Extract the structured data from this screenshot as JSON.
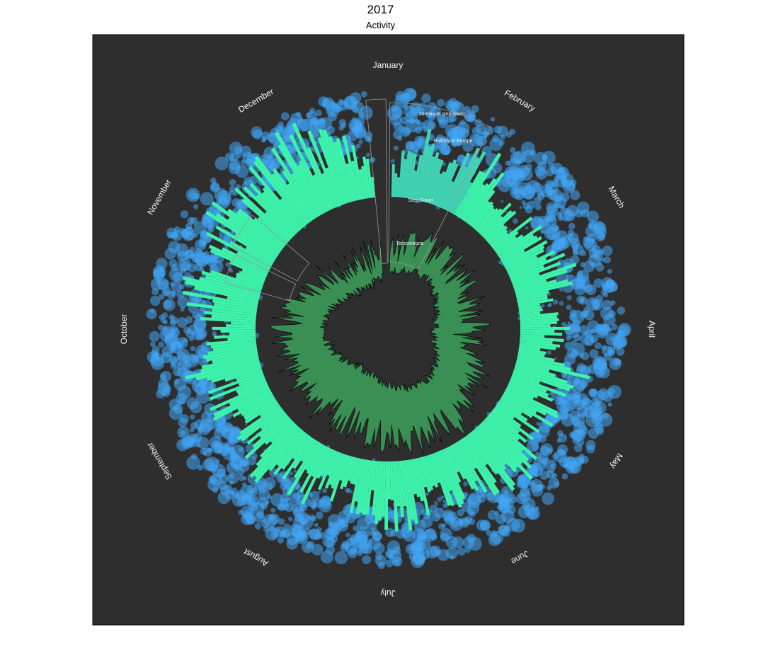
{
  "chart_data": {
    "type": "area",
    "title": "2017",
    "subtitle": "Activity",
    "layout": "polar",
    "theme": {
      "panel_background": "#2e2e2e",
      "panel_border": "#000000",
      "text_color": "#f2f2f2",
      "step_count_color": "#3df2aa",
      "step_count_highlight_color": "#40d4b4",
      "fifteen_min_color": "#42a5f5",
      "temperature_fill": "#3a8f55",
      "temperature_stroke": "#000000",
      "annotation_stroke": "#9a9a9a"
    },
    "months": [
      "January",
      "February",
      "March",
      "April",
      "May",
      "June",
      "July",
      "August",
      "September",
      "October",
      "November",
      "December"
    ],
    "series": [
      {
        "name": "Temperature",
        "type": "area",
        "values_weekly": [
          2,
          4,
          3,
          6,
          5,
          7,
          5,
          8,
          7,
          9,
          8,
          10,
          11,
          12,
          11,
          13,
          14,
          15,
          14,
          16,
          17,
          18,
          17,
          19,
          20,
          21,
          20,
          22,
          21,
          20,
          21,
          19,
          20,
          18,
          17,
          18,
          16,
          15,
          14,
          13,
          12,
          11,
          10,
          9,
          8,
          7,
          6,
          5,
          4,
          3,
          3,
          2
        ]
      },
      {
        "name": "Step Count",
        "type": "bar",
        "values_weekly": [
          6000,
          9000,
          14000,
          10000,
          15000,
          12000,
          9000,
          8000,
          11000,
          9000,
          12000,
          10000,
          8000,
          11000,
          9000,
          13000,
          10000,
          12000,
          9000,
          11000,
          14000,
          12000,
          10000,
          13000,
          11000,
          15000,
          12000,
          10000,
          9000,
          11000,
          12000,
          10000,
          14000,
          11000,
          9000,
          12000,
          10000,
          13000,
          11000,
          9000,
          12000,
          14000,
          10000,
          13000,
          15000,
          12000,
          16000,
          14000,
          18000,
          15000,
          13000,
          8000
        ]
      },
      {
        "name": "15-minute step count",
        "type": "scatter"
      }
    ],
    "annotations": [
      {
        "label": "15-minute step count"
      },
      {
        "label": "Holiday in Europe"
      },
      {
        "label": "Step Count"
      },
      {
        "label": "Temperature"
      }
    ]
  }
}
